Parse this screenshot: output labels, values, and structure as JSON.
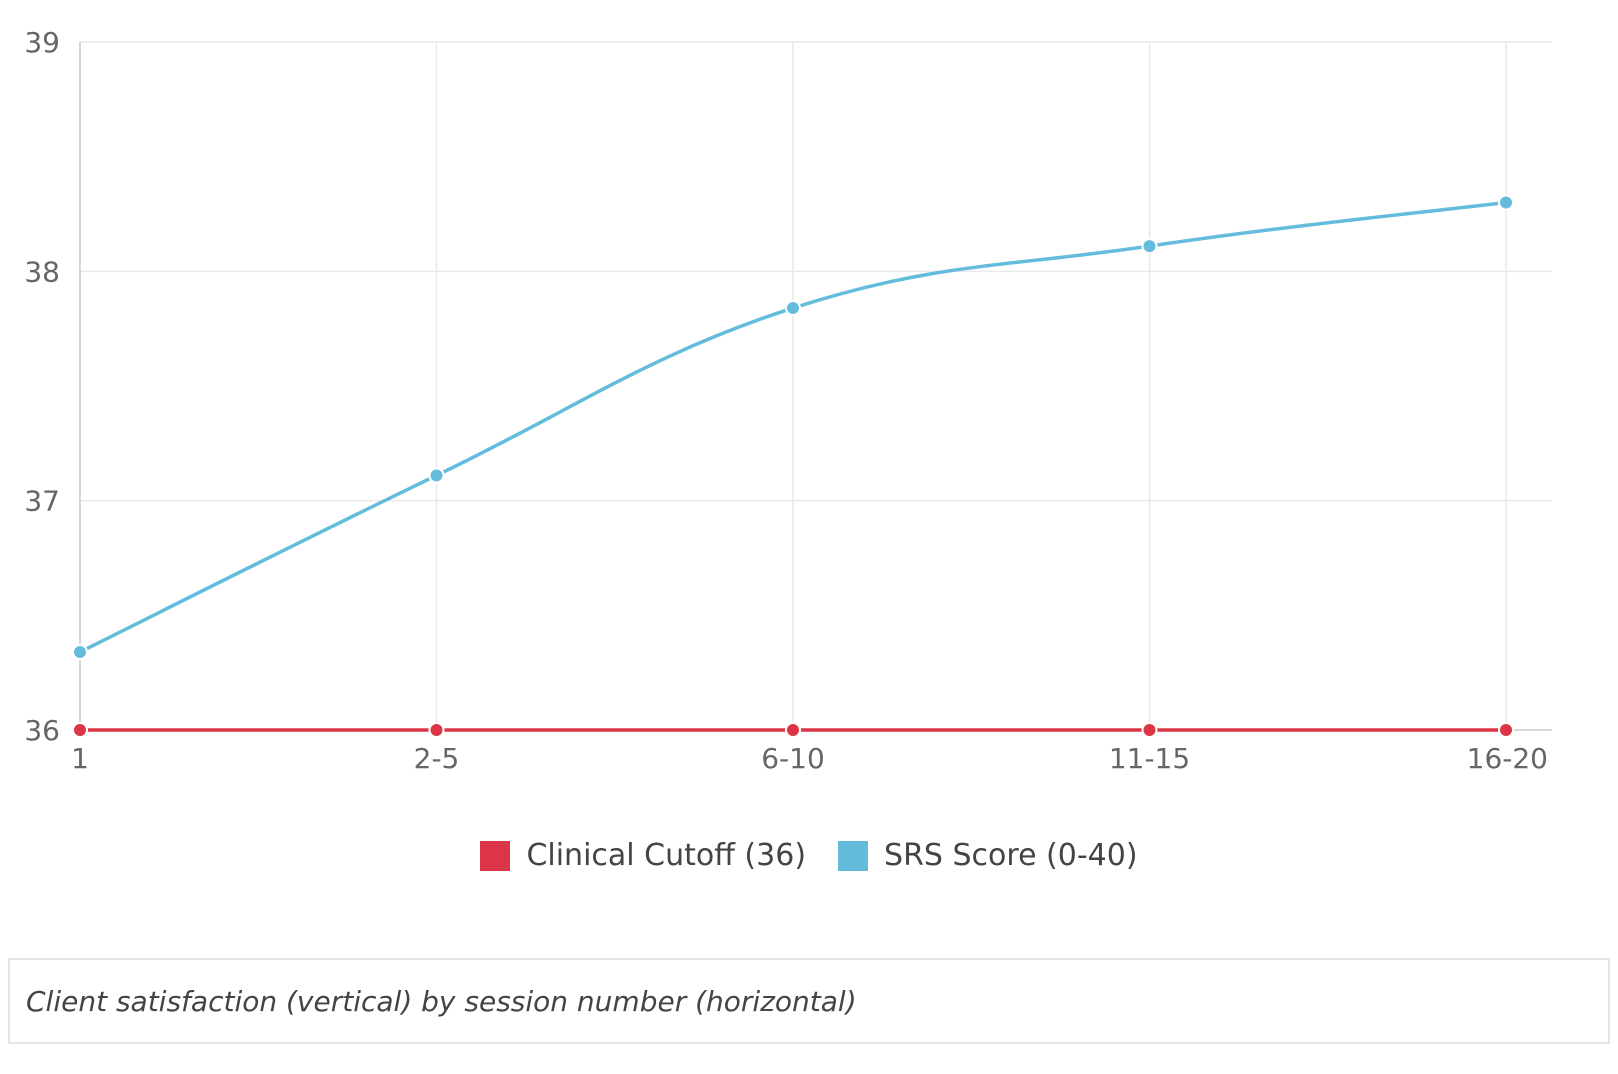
{
  "chart_data": {
    "type": "line",
    "categories": [
      "1",
      "2-5",
      "6-10",
      "11-15",
      "16-20"
    ],
    "ylim": [
      36,
      39
    ],
    "yticks": [
      "36",
      "37",
      "38",
      "39"
    ],
    "series": [
      {
        "name": "Clinical Cutoff (36)",
        "values": [
          36,
          36,
          36,
          36,
          36
        ],
        "color": "#dc3545",
        "smooth": false
      },
      {
        "name": "SRS Score (0-40)",
        "values": [
          36.34,
          37.11,
          37.84,
          38.11,
          38.3
        ],
        "color": "#64bcdc",
        "smooth": true
      }
    ],
    "legend_position": "bottom-center",
    "grid": true
  },
  "legend": {
    "items": [
      {
        "label": "Clinical Cutoff (36)",
        "color": "#dc3545"
      },
      {
        "label": "SRS Score (0-40)",
        "color": "#64bcdc"
      }
    ]
  },
  "caption": "Client satisfaction (vertical) by session number (horizontal)"
}
